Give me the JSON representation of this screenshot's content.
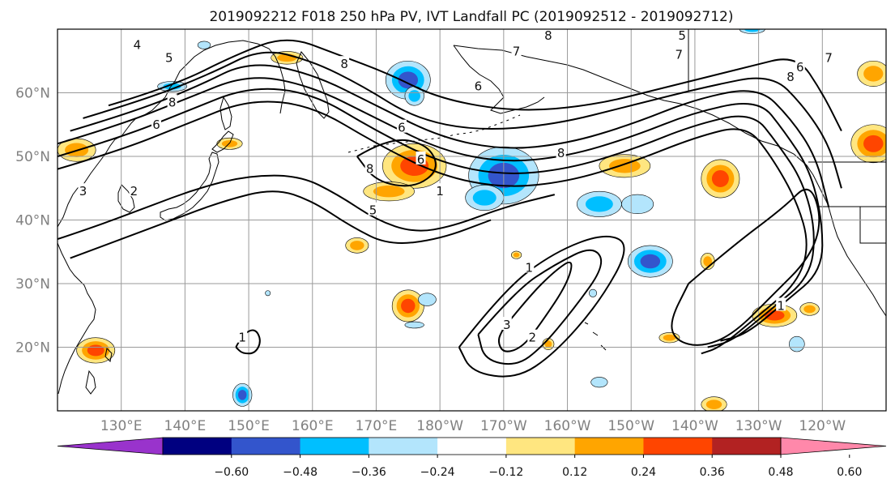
{
  "title": "2019092212 F018 250 hPa PV, IVT Landfall PC (2019092512 - 2019092712)",
  "map": {
    "projection": "PlateCarree",
    "lon_range": [
      120,
      250
    ],
    "lat_range": [
      10,
      70
    ],
    "lon_ticks": [
      {
        "lon": 130,
        "label": "130°E"
      },
      {
        "lon": 140,
        "label": "140°E"
      },
      {
        "lon": 150,
        "label": "150°E"
      },
      {
        "lon": 160,
        "label": "160°E"
      },
      {
        "lon": 170,
        "label": "170°E"
      },
      {
        "lon": 180,
        "label": "180°W"
      },
      {
        "lon": 190,
        "label": "170°W"
      },
      {
        "lon": 200,
        "label": "160°W"
      },
      {
        "lon": 210,
        "label": "150°W"
      },
      {
        "lon": 220,
        "label": "140°W"
      },
      {
        "lon": 230,
        "label": "130°W"
      },
      {
        "lon": 240,
        "label": "120°W"
      }
    ],
    "lat_ticks": [
      {
        "lat": 20,
        "label": "20°N"
      },
      {
        "lat": 30,
        "label": "30°N"
      },
      {
        "lat": 40,
        "label": "40°N"
      },
      {
        "lat": 50,
        "label": "50°N"
      },
      {
        "lat": 60,
        "label": "60°N"
      }
    ],
    "grid": true
  },
  "colorbar": {
    "orientation": "horizontal",
    "extend": "both",
    "colors": [
      "#9933cc",
      "#000080",
      "#3355cc",
      "#00bfff",
      "#b3e5fc",
      "#ffffff",
      "#ffe680",
      "#ffa500",
      "#ff4500",
      "#b22222",
      "#ff88aa"
    ],
    "ticks": [
      "−0.60",
      "−0.48",
      "−0.36",
      "−0.24",
      "−0.12",
      "0.12",
      "0.24",
      "0.36",
      "0.48",
      "0.60"
    ]
  },
  "chart_data": {
    "type": "heatmap",
    "contour_labels": [
      {
        "text": "5",
        "lon": 137.5,
        "lat": 65.5
      },
      {
        "text": "4",
        "lon": 132.5,
        "lat": 67.5
      },
      {
        "text": "8",
        "lon": 165,
        "lat": 64.5
      },
      {
        "text": "8",
        "lon": 138,
        "lat": 58.5
      },
      {
        "text": "6",
        "lon": 135.5,
        "lat": 55.0
      },
      {
        "text": "6",
        "lon": 174,
        "lat": 54.5
      },
      {
        "text": "3",
        "lon": 124,
        "lat": 44.5
      },
      {
        "text": "2",
        "lon": 132,
        "lat": 44.5
      },
      {
        "text": "6",
        "lon": 177,
        "lat": 49.5
      },
      {
        "text": "8",
        "lon": 169,
        "lat": 48.0
      },
      {
        "text": "1",
        "lon": 180,
        "lat": 44.5
      },
      {
        "text": "5",
        "lon": 169.5,
        "lat": 41.5
      },
      {
        "text": "8",
        "lon": 199,
        "lat": 50.5
      },
      {
        "text": "6",
        "lon": 186,
        "lat": 61.0
      },
      {
        "text": "7",
        "lon": 192,
        "lat": 66.5
      },
      {
        "text": "8",
        "lon": 197,
        "lat": 69.0
      },
      {
        "text": "7",
        "lon": 217.5,
        "lat": 66.0
      },
      {
        "text": "5",
        "lon": 218,
        "lat": 69.0
      },
      {
        "text": "6",
        "lon": 236.5,
        "lat": 64.0
      },
      {
        "text": "8",
        "lon": 235,
        "lat": 62.5
      },
      {
        "text": "7",
        "lon": 241,
        "lat": 65.5
      },
      {
        "text": "1",
        "lon": 194,
        "lat": 32.5
      },
      {
        "text": "3",
        "lon": 190.5,
        "lat": 23.5
      },
      {
        "text": "2",
        "lon": 194.5,
        "lat": 21.5
      },
      {
        "text": "1",
        "lon": 233.5,
        "lat": 26.5
      },
      {
        "text": "1",
        "lon": 149,
        "lat": 21.5
      }
    ],
    "pv_contours": [
      {
        "name": "jet-outer",
        "points": [
          [
            120,
            48
          ],
          [
            130,
            51
          ],
          [
            140,
            55
          ],
          [
            150,
            59
          ],
          [
            160,
            58
          ],
          [
            170,
            52
          ],
          [
            180,
            47
          ],
          [
            190,
            45
          ],
          [
            200,
            46
          ],
          [
            210,
            49
          ],
          [
            220,
            53
          ],
          [
            228,
            55
          ],
          [
            232,
            50
          ],
          [
            236,
            43
          ],
          [
            238,
            36
          ],
          [
            236,
            30
          ],
          [
            230,
            25
          ],
          [
            224,
            20
          ],
          [
            221,
            19
          ]
        ]
      },
      {
        "name": "jet-2",
        "points": [
          [
            120,
            50
          ],
          [
            130,
            53
          ],
          [
            140,
            57
          ],
          [
            150,
            61
          ],
          [
            160,
            60
          ],
          [
            170,
            54
          ],
          [
            180,
            49
          ],
          [
            190,
            47
          ],
          [
            200,
            48
          ],
          [
            210,
            51
          ],
          [
            220,
            55
          ],
          [
            229,
            57
          ],
          [
            233,
            52
          ],
          [
            237,
            46
          ],
          [
            239,
            38
          ],
          [
            238,
            31
          ],
          [
            232,
            26
          ],
          [
            226,
            21
          ],
          [
            222,
            20
          ]
        ]
      },
      {
        "name": "jet-3",
        "points": [
          [
            120,
            52
          ],
          [
            130,
            55
          ],
          [
            140,
            59
          ],
          [
            150,
            63
          ],
          [
            160,
            61
          ],
          [
            170,
            56
          ],
          [
            180,
            51
          ],
          [
            190,
            49
          ],
          [
            200,
            50
          ],
          [
            210,
            53
          ],
          [
            220,
            57
          ],
          [
            230,
            59
          ],
          [
            234,
            54
          ],
          [
            238,
            48
          ],
          [
            240,
            40
          ],
          [
            240,
            32
          ],
          [
            234,
            27
          ],
          [
            228,
            22
          ],
          [
            224,
            21
          ]
        ]
      },
      {
        "name": "jet-4",
        "points": [
          [
            122,
            54
          ],
          [
            132,
            57
          ],
          [
            142,
            61
          ],
          [
            150,
            65
          ],
          [
            160,
            63
          ],
          [
            170,
            58
          ],
          [
            180,
            53
          ],
          [
            190,
            51
          ],
          [
            200,
            52
          ],
          [
            210,
            55
          ],
          [
            220,
            59
          ],
          [
            230,
            61
          ],
          [
            235,
            56
          ],
          [
            239,
            50
          ],
          [
            241,
            42
          ]
        ]
      },
      {
        "name": "jet-5",
        "points": [
          [
            124,
            56
          ],
          [
            134,
            59
          ],
          [
            144,
            63
          ],
          [
            152,
            67
          ],
          [
            160,
            65
          ],
          [
            168,
            61
          ],
          [
            176,
            56
          ],
          [
            186,
            54
          ],
          [
            198,
            55
          ],
          [
            210,
            58
          ],
          [
            222,
            61
          ],
          [
            232,
            63
          ],
          [
            237,
            58
          ],
          [
            241,
            52
          ],
          [
            243,
            45
          ]
        ]
      },
      {
        "name": "jet-6",
        "points": [
          [
            128,
            58
          ],
          [
            138,
            61
          ],
          [
            148,
            66
          ],
          [
            156,
            69
          ],
          [
            164,
            66
          ],
          [
            172,
            63
          ],
          [
            180,
            59
          ],
          [
            192,
            57
          ],
          [
            204,
            58
          ],
          [
            216,
            61
          ],
          [
            228,
            64
          ],
          [
            236,
            66
          ],
          [
            240,
            60
          ],
          [
            243,
            54
          ]
        ]
      },
      {
        "name": "jet-south",
        "points": [
          [
            120,
            37
          ],
          [
            126,
            39
          ],
          [
            134,
            42
          ],
          [
            142,
            45
          ],
          [
            150,
            47
          ],
          [
            158,
            47
          ],
          [
            164,
            44
          ],
          [
            170,
            40
          ],
          [
            176,
            38
          ],
          [
            182,
            39
          ],
          [
            190,
            42
          ],
          [
            198,
            44
          ]
        ]
      },
      {
        "name": "jet-south-2",
        "points": [
          [
            122,
            34
          ],
          [
            130,
            37
          ],
          [
            138,
            40
          ],
          [
            146,
            43
          ],
          [
            154,
            45
          ],
          [
            160,
            43
          ],
          [
            166,
            39
          ],
          [
            172,
            36
          ],
          [
            180,
            37
          ],
          [
            188,
            40
          ]
        ]
      },
      {
        "name": "cutoff-ridge",
        "points": [
          [
            219,
            30
          ],
          [
            226,
            36
          ],
          [
            234,
            42
          ],
          [
            238,
            46
          ],
          [
            240,
            40
          ],
          [
            238,
            34
          ],
          [
            232,
            28
          ],
          [
            226,
            22
          ],
          [
            221,
            20
          ],
          [
            217,
            21
          ],
          [
            216,
            24
          ],
          [
            219,
            30
          ]
        ]
      },
      {
        "name": "tropical-1",
        "points": [
          [
            190,
            23
          ],
          [
            194,
            28
          ],
          [
            198,
            32
          ],
          [
            201,
            34
          ],
          [
            200,
            30
          ],
          [
            196,
            24
          ],
          [
            193,
            20
          ],
          [
            190,
            19
          ],
          [
            189,
            21
          ],
          [
            190,
            23
          ]
        ]
      },
      {
        "name": "tropical-2",
        "points": [
          [
            186,
            22
          ],
          [
            192,
            29
          ],
          [
            198,
            33
          ],
          [
            204,
            36
          ],
          [
            206,
            33
          ],
          [
            201,
            26
          ],
          [
            196,
            20
          ],
          [
            192,
            17
          ],
          [
            187,
            18
          ],
          [
            186,
            22
          ]
        ]
      },
      {
        "name": "tropical-3",
        "points": [
          [
            183,
            20
          ],
          [
            190,
            29
          ],
          [
            198,
            35
          ],
          [
            206,
            38
          ],
          [
            210,
            36
          ],
          [
            205,
            27
          ],
          [
            198,
            19
          ],
          [
            192,
            15
          ],
          [
            185,
            16
          ],
          [
            183,
            20
          ]
        ]
      },
      {
        "name": "small-1",
        "points": [
          [
            148,
            20
          ],
          [
            149,
            22
          ],
          [
            151,
            23
          ],
          [
            152,
            21
          ],
          [
            151,
            19
          ],
          [
            149,
            19
          ],
          [
            148,
            20
          ]
        ]
      },
      {
        "name": "cyclone-ring",
        "points": [
          [
            167,
            50
          ],
          [
            172,
            53
          ],
          [
            178,
            52
          ],
          [
            180,
            48
          ],
          [
            176,
            45
          ],
          [
            170,
            46
          ],
          [
            167,
            50
          ]
        ]
      }
    ],
    "ivt_blobs": [
      {
        "lon": 176,
        "lat": 48.5,
        "rx": 5,
        "ry": 3.5,
        "level": 0.42
      },
      {
        "lon": 172,
        "lat": 44.5,
        "rx": 4,
        "ry": 1.5,
        "level": 0.3
      },
      {
        "lon": 190,
        "lat": 47,
        "rx": 5.5,
        "ry": 4.5,
        "level": -0.4
      },
      {
        "lon": 187,
        "lat": 43.5,
        "rx": 3,
        "ry": 2,
        "level": -0.28
      },
      {
        "lon": 175,
        "lat": 62,
        "rx": 3.5,
        "ry": 3,
        "level": -0.36
      },
      {
        "lon": 176,
        "lat": 59.5,
        "rx": 1.5,
        "ry": 1.5,
        "level": -0.26
      },
      {
        "lon": 224,
        "lat": 46.5,
        "rx": 3,
        "ry": 3,
        "level": 0.4
      },
      {
        "lon": 213,
        "lat": 33.5,
        "rx": 3.5,
        "ry": 2.5,
        "level": -0.38
      },
      {
        "lon": 205,
        "lat": 42.5,
        "rx": 3.5,
        "ry": 2,
        "level": -0.26
      },
      {
        "lon": 211,
        "lat": 42.5,
        "rx": 2.5,
        "ry": 1.5,
        "level": -0.22
      },
      {
        "lon": 175,
        "lat": 26.5,
        "rx": 2.5,
        "ry": 2.5,
        "level": 0.38
      },
      {
        "lon": 126,
        "lat": 19.5,
        "rx": 3,
        "ry": 2,
        "level": 0.38
      },
      {
        "lon": 232.5,
        "lat": 25,
        "rx": 3.5,
        "ry": 1.8,
        "level": 0.4
      },
      {
        "lon": 209,
        "lat": 48.5,
        "rx": 4,
        "ry": 1.8,
        "level": 0.28
      },
      {
        "lon": 248,
        "lat": 52,
        "rx": 3.5,
        "ry": 3,
        "level": 0.42
      },
      {
        "lon": 248,
        "lat": 63,
        "rx": 2.5,
        "ry": 2,
        "level": 0.32
      },
      {
        "lon": 123,
        "lat": 51,
        "rx": 3,
        "ry": 1.8,
        "level": 0.26
      },
      {
        "lon": 149,
        "lat": 12.5,
        "rx": 1.5,
        "ry": 1.8,
        "level": -0.36
      },
      {
        "lon": 138,
        "lat": 61,
        "rx": 2.3,
        "ry": 0.8,
        "level": -0.26
      },
      {
        "lon": 156,
        "lat": 65.5,
        "rx": 2.5,
        "ry": 1,
        "level": 0.28
      },
      {
        "lon": 167,
        "lat": 36,
        "rx": 1.8,
        "ry": 1.2,
        "level": 0.28
      },
      {
        "lon": 147,
        "lat": 52,
        "rx": 2,
        "ry": 0.9,
        "level": 0.24
      },
      {
        "lon": 223,
        "lat": 11,
        "rx": 2,
        "ry": 1.2,
        "level": 0.28
      },
      {
        "lon": 216,
        "lat": 21.5,
        "rx": 1.6,
        "ry": 0.8,
        "level": 0.24
      },
      {
        "lon": 205,
        "lat": 14.5,
        "rx": 1.3,
        "ry": 0.8,
        "level": -0.22
      },
      {
        "lon": 178,
        "lat": 27.5,
        "rx": 1.4,
        "ry": 1.0,
        "level": -0.22
      },
      {
        "lon": 176,
        "lat": 23.5,
        "rx": 1.5,
        "ry": 0.5,
        "level": -0.2
      },
      {
        "lon": 236,
        "lat": 20.5,
        "rx": 1.2,
        "ry": 1.2,
        "level": -0.22
      },
      {
        "lon": 197,
        "lat": 20.5,
        "rx": 0.9,
        "ry": 0.9,
        "level": 0.26
      },
      {
        "lon": 192,
        "lat": 34.5,
        "rx": 0.8,
        "ry": 0.6,
        "level": 0.26
      },
      {
        "lon": 222,
        "lat": 33.5,
        "rx": 1.1,
        "ry": 1.3,
        "level": 0.26
      },
      {
        "lon": 238,
        "lat": 26,
        "rx": 1.5,
        "ry": 1.0,
        "level": 0.3
      },
      {
        "lon": 143,
        "lat": 67.5,
        "rx": 1.0,
        "ry": 0.6,
        "level": -0.22
      },
      {
        "lon": 229,
        "lat": 70,
        "rx": 2,
        "ry": 0.7,
        "level": -0.24
      },
      {
        "lon": 204,
        "lat": 28.5,
        "rx": 0.6,
        "ry": 0.6,
        "level": -0.2
      },
      {
        "lon": 153,
        "lat": 28.5,
        "rx": 0.4,
        "ry": 0.4,
        "level": -0.2
      }
    ]
  }
}
